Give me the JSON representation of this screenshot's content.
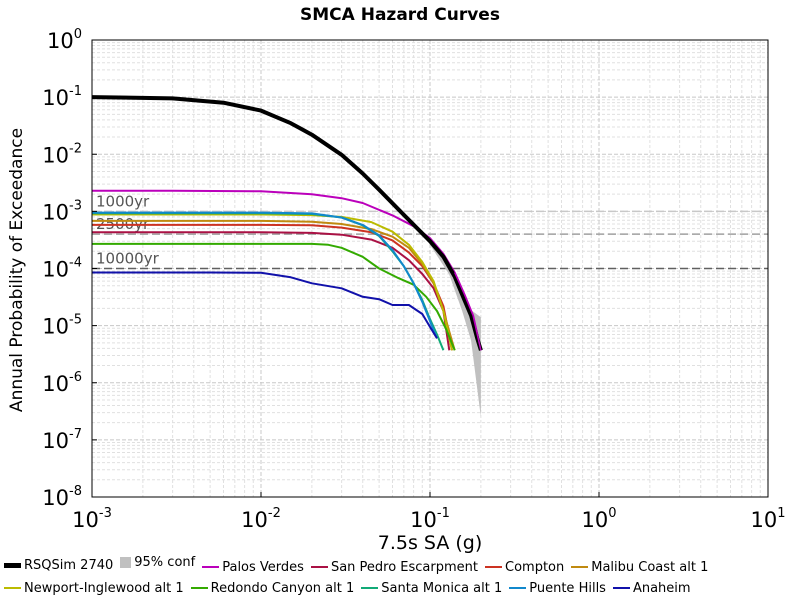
{
  "chart_data": {
    "type": "line",
    "title": "SMCA Hazard Curves",
    "xlabel": "7.5s SA (g)",
    "ylabel": "Annual Probability of Exceedance",
    "x_scale": "log",
    "y_scale": "log",
    "xlim": [
      0.001,
      10
    ],
    "ylim": [
      1e-08,
      1
    ],
    "grid": true,
    "legend_position": "bottom",
    "x_ticks": [
      {
        "value": 0.001,
        "base": "10",
        "exp": "-3"
      },
      {
        "value": 0.01,
        "base": "10",
        "exp": "-2"
      },
      {
        "value": 0.1,
        "base": "10",
        "exp": "-1"
      },
      {
        "value": 1,
        "base": "10",
        "exp": "0"
      },
      {
        "value": 10,
        "base": "10",
        "exp": "1"
      }
    ],
    "y_ticks": [
      {
        "value": 1,
        "base": "10",
        "exp": "0"
      },
      {
        "value": 0.1,
        "base": "10",
        "exp": "-1"
      },
      {
        "value": 0.01,
        "base": "10",
        "exp": "-2"
      },
      {
        "value": 0.001,
        "base": "10",
        "exp": "-3"
      },
      {
        "value": 0.0001,
        "base": "10",
        "exp": "-4"
      },
      {
        "value": 1e-05,
        "base": "10",
        "exp": "-5"
      },
      {
        "value": 1e-06,
        "base": "10",
        "exp": "-6"
      },
      {
        "value": 1e-07,
        "base": "10",
        "exp": "-7"
      },
      {
        "value": 1e-08,
        "base": "10",
        "exp": "-8"
      }
    ],
    "reference_lines": [
      {
        "label": "1000yr",
        "y": 0.001,
        "color": "#c8c8c8"
      },
      {
        "label": "2500yr",
        "y": 0.0004,
        "color": "#a0a0a0"
      },
      {
        "label": "10000yr",
        "y": 0.0001,
        "color": "#606060"
      }
    ],
    "confidence_band": {
      "name": "95% conf",
      "color": "#c0c0c0",
      "x": [
        0.1,
        0.13,
        0.155,
        0.175,
        0.2
      ],
      "y_low": [
        0.00026,
        7.8e-05,
        1.8e-05,
        5.5e-06,
        2.5e-07
      ],
      "y_high": [
        0.00034,
        0.000118,
        3.05e-05,
        1.87e-05,
        1.4e-05
      ]
    },
    "series": [
      {
        "name": "RSQSim 2740",
        "color": "#000000",
        "width": 4,
        "x": [
          0.001,
          0.003,
          0.006,
          0.01,
          0.015,
          0.02,
          0.03,
          0.04,
          0.05,
          0.07,
          0.1,
          0.12,
          0.14,
          0.16,
          0.175,
          0.19,
          0.2
        ],
        "y": [
          0.1,
          0.095,
          0.08,
          0.058,
          0.035,
          0.022,
          0.0098,
          0.0046,
          0.0024,
          0.00087,
          0.0003,
          0.00016,
          7.2e-05,
          2.8e-05,
          1.5e-05,
          6.1e-06,
          3.7e-06
        ]
      },
      {
        "name": "Palos Verdes",
        "color": "#bb00bb",
        "width": 2,
        "x": [
          0.001,
          0.003,
          0.01,
          0.02,
          0.03,
          0.04,
          0.06,
          0.08,
          0.1,
          0.12,
          0.14,
          0.16,
          0.18,
          0.2
        ],
        "y": [
          0.0023,
          0.0023,
          0.00225,
          0.002,
          0.0017,
          0.0014,
          0.00085,
          0.00055,
          0.00034,
          0.00018,
          8.5e-05,
          3.5e-05,
          1.5e-05,
          3.7e-06
        ]
      },
      {
        "name": "San Pedro Escarpment",
        "color": "#aa1144",
        "width": 2,
        "x": [
          0.001,
          0.01,
          0.02,
          0.03,
          0.045,
          0.06,
          0.075,
          0.09,
          0.105,
          0.12,
          0.13
        ],
        "y": [
          0.00043,
          0.00043,
          0.00042,
          0.00039,
          0.00032,
          0.00023,
          0.00014,
          8e-05,
          4.5e-05,
          1.8e-05,
          3.7e-06
        ]
      },
      {
        "name": "Compton",
        "color": "#cc3322",
        "width": 2,
        "x": [
          0.001,
          0.01,
          0.02,
          0.03,
          0.045,
          0.06,
          0.075,
          0.09,
          0.105,
          0.12,
          0.135
        ],
        "y": [
          0.00058,
          0.00058,
          0.00057,
          0.00052,
          0.00043,
          0.00031,
          0.00019,
          0.00011,
          5.5e-05,
          2.2e-05,
          3.7e-06
        ]
      },
      {
        "name": "Malibu Coast alt 1",
        "color": "#c08a10",
        "width": 2,
        "x": [
          0.001,
          0.01,
          0.02,
          0.03,
          0.045,
          0.06,
          0.075,
          0.09,
          0.105,
          0.12,
          0.14
        ],
        "y": [
          0.00068,
          0.00068,
          0.00066,
          0.0006,
          0.00049,
          0.00036,
          0.00023,
          0.00012,
          5.5e-05,
          1.8e-05,
          3.7e-06
        ]
      },
      {
        "name": "Newport-Inglewood alt 1",
        "color": "#bbbb00",
        "width": 2,
        "x": [
          0.001,
          0.01,
          0.02,
          0.03,
          0.045,
          0.06,
          0.075,
          0.09,
          0.105,
          0.12,
          0.135
        ],
        "y": [
          0.00088,
          0.00088,
          0.00086,
          0.0008,
          0.00065,
          0.00044,
          0.00026,
          0.00013,
          6e-05,
          1.8e-05,
          3.7e-06
        ]
      },
      {
        "name": "Redondo Canyon alt 1",
        "color": "#33aa00",
        "width": 2,
        "x": [
          0.001,
          0.01,
          0.02,
          0.025,
          0.03,
          0.04,
          0.05,
          0.065,
          0.08,
          0.095,
          0.11,
          0.125,
          0.14
        ],
        "y": [
          0.00027,
          0.00027,
          0.00027,
          0.00026,
          0.00023,
          0.00016,
          0.0001,
          6.8e-05,
          5.2e-05,
          3.2e-05,
          1.8e-05,
          8.5e-06,
          3.7e-06
        ]
      },
      {
        "name": "Santa Monica alt 1",
        "color": "#11aa77",
        "width": 2,
        "x": [
          0.001,
          0.01,
          0.02,
          0.03,
          0.04,
          0.05,
          0.06,
          0.07,
          0.08,
          0.09,
          0.1,
          0.11,
          0.12
        ],
        "y": [
          0.00093,
          0.00093,
          0.0009,
          0.00078,
          0.00057,
          0.00037,
          0.0002,
          0.00011,
          5.5e-05,
          2.8e-05,
          1.3e-05,
          7e-06,
          3.7e-06
        ]
      },
      {
        "name": "Puente Hills",
        "color": "#1188cc",
        "width": 2,
        "x": [
          0.001,
          0.01,
          0.02,
          0.03,
          0.04,
          0.05,
          0.06,
          0.07,
          0.08,
          0.09,
          0.1,
          0.11
        ],
        "y": [
          0.00095,
          0.00095,
          0.00092,
          0.00078,
          0.00058,
          0.00038,
          0.00021,
          0.00011,
          5.5e-05,
          2.6e-05,
          1.2e-05,
          6e-06
        ]
      },
      {
        "name": "Anaheim",
        "color": "#1111aa",
        "width": 2,
        "x": [
          0.001,
          0.005,
          0.01,
          0.015,
          0.02,
          0.03,
          0.04,
          0.05,
          0.06,
          0.075,
          0.09,
          0.1,
          0.11
        ],
        "y": [
          8.5e-05,
          8.5e-05,
          8.4e-05,
          7e-05,
          5.5e-05,
          4.5e-05,
          3.2e-05,
          2.9e-05,
          2.3e-05,
          2.3e-05,
          1.6e-05,
          9.5e-06,
          6e-06
        ]
      }
    ],
    "legend_rows": [
      [
        {
          "name": "RSQSim 2740",
          "color": "#000000",
          "kind": "thick"
        },
        {
          "name": "95% conf",
          "color": "#c0c0c0",
          "kind": "box"
        },
        {
          "name": "Palos Verdes",
          "color": "#bb00bb",
          "kind": "line"
        },
        {
          "name": "San Pedro Escarpment",
          "color": "#aa1144",
          "kind": "line"
        },
        {
          "name": "Compton",
          "color": "#cc3322",
          "kind": "line"
        },
        {
          "name": "Malibu Coast alt 1",
          "color": "#c08a10",
          "kind": "line"
        }
      ],
      [
        {
          "name": "Newport-Inglewood alt 1",
          "color": "#bbbb00",
          "kind": "line"
        },
        {
          "name": "Redondo Canyon alt 1",
          "color": "#33aa00",
          "kind": "line"
        },
        {
          "name": "Santa Monica alt 1",
          "color": "#11aa77",
          "kind": "line"
        },
        {
          "name": "Puente Hills",
          "color": "#1188cc",
          "kind": "line"
        },
        {
          "name": "Anaheim",
          "color": "#1111aa",
          "kind": "line"
        }
      ]
    ]
  }
}
